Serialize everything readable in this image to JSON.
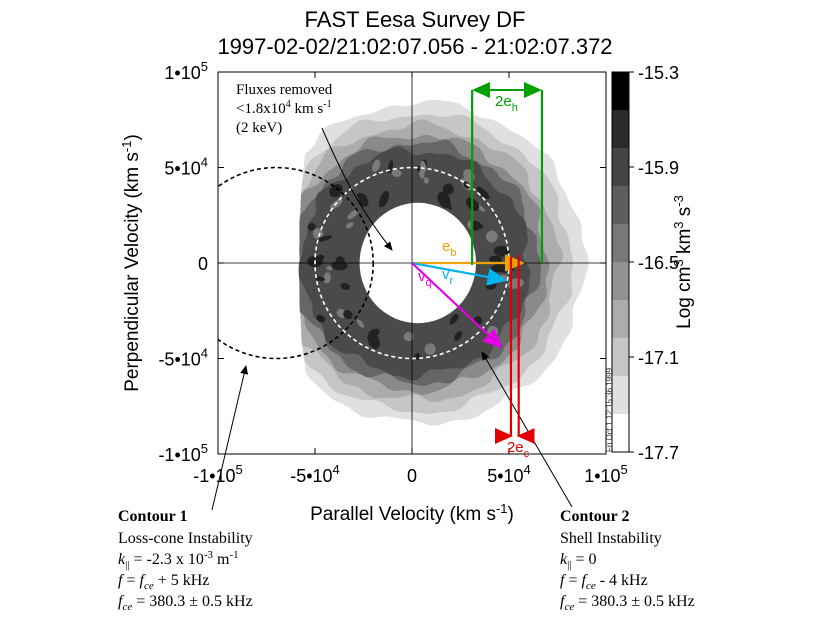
{
  "chart_data": {
    "type": "heatmap",
    "title": "FAST  Eesa Survey DF",
    "subtitle": "1997-02-02/21:02:07.056 - 21:02:07.372",
    "xlabel": "Parallel Velocity (km s",
    "xlabel_sup": "-1",
    "xlabel_end": ")",
    "ylabel": "Perpendicular Velocity (km s",
    "ylabel_sup": "-1",
    "ylabel_end": ")",
    "xlim": [
      -100000,
      100000
    ],
    "ylim": [
      -100000,
      100000
    ],
    "x_ticks": [
      {
        "value": -100000,
        "base": "-1•10",
        "exp": "5"
      },
      {
        "value": -50000,
        "base": "-5•10",
        "exp": "4"
      },
      {
        "value": 0,
        "base": "0",
        "exp": ""
      },
      {
        "value": 50000,
        "base": "5•10",
        "exp": "4"
      },
      {
        "value": 100000,
        "base": "1•10",
        "exp": "5"
      }
    ],
    "y_ticks": [
      {
        "value": 100000,
        "base": "1•10",
        "exp": "5"
      },
      {
        "value": 50000,
        "base": "5•10",
        "exp": "4"
      },
      {
        "value": 0,
        "base": "0",
        "exp": ""
      },
      {
        "value": -50000,
        "base": "-5•10",
        "exp": "4"
      },
      {
        "value": -100000,
        "base": "-1•10",
        "exp": "5"
      }
    ],
    "colorbar": {
      "label": "Log cm",
      "label_sup1": "3",
      "label_mid": " km",
      "label_sup2": "3",
      "label_mid2": " s",
      "label_sup3": "-3",
      "range": [
        -17.7,
        -15.3
      ],
      "ticks": [
        "-15.3",
        "-15.9",
        "-16.5",
        "-17.1",
        "-17.7"
      ],
      "levels": [
        "#000000",
        "#2a2a2a",
        "#444444",
        "#5e5e5e",
        "#787878",
        "#929292",
        "#acacac",
        "#c6c6c6",
        "#e0e0e0",
        "#ffffff"
      ]
    },
    "contour_levels": [
      {
        "level": -17.6,
        "color": "#e0e0e0"
      },
      {
        "level": -17.3,
        "color": "#c6c6c6"
      },
      {
        "level": -17.0,
        "color": "#acacac"
      },
      {
        "level": -16.7,
        "color": "#8a8a8a"
      },
      {
        "level": -16.3,
        "color": "#666666"
      },
      {
        "level": -16.0,
        "color": "#4a4a4a"
      }
    ],
    "vectors": [
      {
        "name": "e_b",
        "label": "e",
        "sub": "b",
        "color": "#f0a000",
        "x": 57000,
        "y": 0
      },
      {
        "name": "v_r",
        "label": "v",
        "sub": "r",
        "color": "#00b4f0",
        "x": 48000,
        "y": -9000
      },
      {
        "name": "v_q",
        "label": "v",
        "sub": "q",
        "color": "#e600e6",
        "x": 46000,
        "y": -44000
      }
    ],
    "brackets": [
      {
        "name": "2e_h",
        "label": "2e",
        "sub": "h",
        "color": "#00a000",
        "x1": 31000,
        "x2": 67000
      },
      {
        "name": "2e_c",
        "label": "2e",
        "sub": "c",
        "color": "#e00000",
        "x1": 51000,
        "x2": 55000
      }
    ],
    "circles": [
      {
        "name": "shell-contour",
        "cx": 0,
        "r": 50000,
        "color": "#ffffff"
      },
      {
        "name": "loss-cone-contour",
        "cx": -70000,
        "r": 50000,
        "color": "#000000"
      }
    ],
    "annotations": {
      "fluxes_line1": "Fluxes removed",
      "fluxes_line2_a": "<1.8x10",
      "fluxes_line2_sup": "4",
      "fluxes_line2_b": " km s",
      "fluxes_line2_sup2": "-1",
      "fluxes_line3": "(2 keV)",
      "stamp": "Fri Oct 1 12:15:36 1999"
    },
    "contour1": {
      "title": "Contour 1",
      "name": "Loss-cone Instability",
      "k_lead": "k",
      "k_sub": "||",
      "k_val": " = -2.3 x 10",
      "k_sup": "-3",
      "k_unit": " m",
      "k_unit_sup": "-1",
      "f_lead": "f",
      "f_eq": " = ",
      "f_fce": "f",
      "f_fce_sub": "ce",
      "f_tail": " + 5 kHz",
      "fce_lead": "f",
      "fce_sub": "ce",
      "fce_val": " = 380.3 ",
      "fce_pm": "±",
      "fce_unit": " 0.5 kHz"
    },
    "contour2": {
      "title": "Contour 2",
      "name": "Shell Instability",
      "k_lead": "k",
      "k_sub": "||",
      "k_val": " = 0",
      "f_lead": "f",
      "f_eq": " = ",
      "f_fce": "f",
      "f_fce_sub": "ce",
      "f_tail": " - 4 kHz",
      "fce_lead": "f",
      "fce_sub": "ce",
      "fce_val": " = 380.3 ",
      "fce_pm": "±",
      "fce_unit": " 0.5 kHz"
    }
  }
}
